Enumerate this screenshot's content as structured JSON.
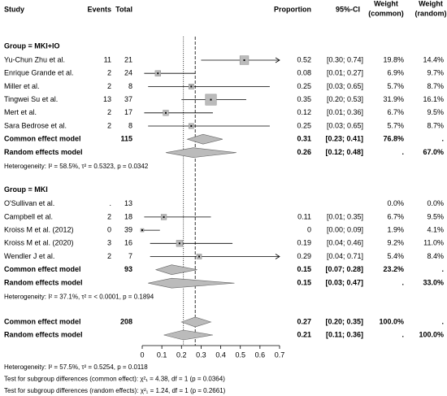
{
  "chart_data": {
    "type": "forest",
    "headers": {
      "study": "Study",
      "events": "Events",
      "total": "Total",
      "proportion": "Proportion",
      "ci": "95%-CI",
      "weight_common": [
        "Weight",
        "(common)"
      ],
      "weight_random": [
        "Weight",
        "(random)"
      ]
    },
    "xlim": [
      0,
      0.7
    ],
    "xticks": [
      0,
      0.1,
      0.2,
      0.3,
      0.4,
      0.5,
      0.6,
      0.7
    ],
    "groups": [
      {
        "label": "Group = MKI+IO",
        "studies": [
          {
            "name": "Yu-Chun Zhu et al.",
            "events": 11,
            "total": 21,
            "proportion": 0.52,
            "ci": [
              0.3,
              0.74
            ],
            "ci_label": "[0.30; 0.74]",
            "weight_common": 19.8,
            "weight_common_label": "19.8%",
            "weight_random": 14.4,
            "weight_random_label": "14.4%"
          },
          {
            "name": "Enrique Grande et al.",
            "events": 2,
            "total": 24,
            "proportion": 0.08,
            "ci": [
              0.01,
              0.27
            ],
            "ci_label": "[0.01; 0.27]",
            "weight_common": 6.9,
            "weight_common_label": "6.9%",
            "weight_random": 9.7,
            "weight_random_label": "9.7%"
          },
          {
            "name": "Miller et al.",
            "events": 2,
            "total": 8,
            "proportion": 0.25,
            "ci": [
              0.03,
              0.65
            ],
            "ci_label": "[0.03; 0.65]",
            "weight_common": 5.7,
            "weight_common_label": "5.7%",
            "weight_random": 8.7,
            "weight_random_label": "8.7%"
          },
          {
            "name": "Tingwei Su et al.",
            "events": 13,
            "total": 37,
            "proportion": 0.35,
            "ci": [
              0.2,
              0.53
            ],
            "ci_label": "[0.20; 0.53]",
            "weight_common": 31.9,
            "weight_common_label": "31.9%",
            "weight_random": 16.1,
            "weight_random_label": "16.1%"
          },
          {
            "name": "Mert et al.",
            "events": 2,
            "total": 17,
            "proportion": 0.12,
            "ci": [
              0.01,
              0.36
            ],
            "ci_label": "[0.01; 0.36]",
            "weight_common": 6.7,
            "weight_common_label": "6.7%",
            "weight_random": 9.5,
            "weight_random_label": "9.5%"
          },
          {
            "name": "Sara Bedrose et al.",
            "events": 2,
            "total": 8,
            "proportion": 0.25,
            "ci": [
              0.03,
              0.65
            ],
            "ci_label": "[0.03; 0.65]",
            "weight_common": 5.7,
            "weight_common_label": "5.7%",
            "weight_random": 8.7,
            "weight_random_label": "8.7%"
          }
        ],
        "common": {
          "name": "Common effect model",
          "total": 115,
          "estimate": 0.31,
          "ci": [
            0.23,
            0.41
          ],
          "ci_label": "[0.23; 0.41]",
          "weight_common_label": "76.8%",
          "weight_random_label": "."
        },
        "random": {
          "name": "Random effects model",
          "estimate": 0.26,
          "ci": [
            0.12,
            0.48
          ],
          "ci_label": "[0.12; 0.48]",
          "weight_common_label": ".",
          "weight_random_label": "67.0%"
        },
        "heterogeneity": "Heterogeneity: I² = 58.5%, τ² = 0.5323, p = 0.0342"
      },
      {
        "label": "Group = MKI",
        "studies": [
          {
            "name": "O'Sullivan et al.",
            "events": ".",
            "total": 13,
            "proportion": null,
            "ci": [
              null,
              null
            ],
            "ci_label": "",
            "weight_common": 0.0,
            "weight_common_label": "0.0%",
            "weight_random": 0.0,
            "weight_random_label": "0.0%"
          },
          {
            "name": "Campbell et al.",
            "events": 2,
            "total": 18,
            "proportion": 0.11,
            "ci": [
              0.01,
              0.35
            ],
            "ci_label": "[0.01; 0.35]",
            "weight_common": 6.7,
            "weight_common_label": "6.7%",
            "weight_random": 9.5,
            "weight_random_label": "9.5%"
          },
          {
            "name": "Kroiss M et al. (2012)",
            "events": 0,
            "total": 39,
            "proportion": 0.0,
            "ci": [
              0.0,
              0.09
            ],
            "ci_label": "[0.00; 0.09]",
            "weight_common": 1.9,
            "weight_common_label": "1.9%",
            "weight_random": 4.1,
            "weight_random_label": "4.1%"
          },
          {
            "name": "Kroiss M et al. (2020)",
            "events": 3,
            "total": 16,
            "proportion": 0.19,
            "ci": [
              0.04,
              0.46
            ],
            "ci_label": "[0.04; 0.46]",
            "weight_common": 9.2,
            "weight_common_label": "9.2%",
            "weight_random": 11.0,
            "weight_random_label": "11.0%"
          },
          {
            "name": "Wendler J et al.",
            "events": 2,
            "total": 7,
            "proportion": 0.29,
            "ci": [
              0.04,
              0.71
            ],
            "ci_label": "[0.04; 0.71]",
            "weight_common": 5.4,
            "weight_common_label": "5.4%",
            "weight_random": 8.4,
            "weight_random_label": "8.4%"
          }
        ],
        "common": {
          "name": "Common effect model",
          "total": 93,
          "estimate": 0.15,
          "ci": [
            0.07,
            0.28
          ],
          "ci_label": "[0.07; 0.28]",
          "weight_common_label": "23.2%",
          "weight_random_label": "."
        },
        "random": {
          "name": "Random effects model",
          "estimate": 0.15,
          "ci": [
            0.03,
            0.47
          ],
          "ci_label": "[0.03; 0.47]",
          "weight_common_label": ".",
          "weight_random_label": "33.0%"
        },
        "heterogeneity": "Heterogeneity: I² = 37.1%, τ² = < 0.0001, p = 0.1894"
      }
    ],
    "overall": {
      "common": {
        "name": "Common effect model",
        "total": 208,
        "estimate": 0.27,
        "ci": [
          0.2,
          0.35
        ],
        "ci_label": "[0.20; 0.35]",
        "weight_common_label": "100.0%",
        "weight_random_label": "."
      },
      "random": {
        "name": "Random effects model",
        "estimate": 0.21,
        "ci": [
          0.11,
          0.36
        ],
        "ci_label": "[0.11; 0.36]",
        "weight_common_label": ".",
        "weight_random_label": "100.0%"
      }
    },
    "footer": [
      "Heterogeneity: I² = 57.5%, τ² = 0.5254, p = 0.0118",
      "Test for subgroup differences (common effect): χ²₁ = 4.38, df = 1 (p = 0.0364)",
      "Test for subgroup differences (random effects): χ²₁ = 1.24, df = 1 (p = 0.2661)"
    ]
  }
}
